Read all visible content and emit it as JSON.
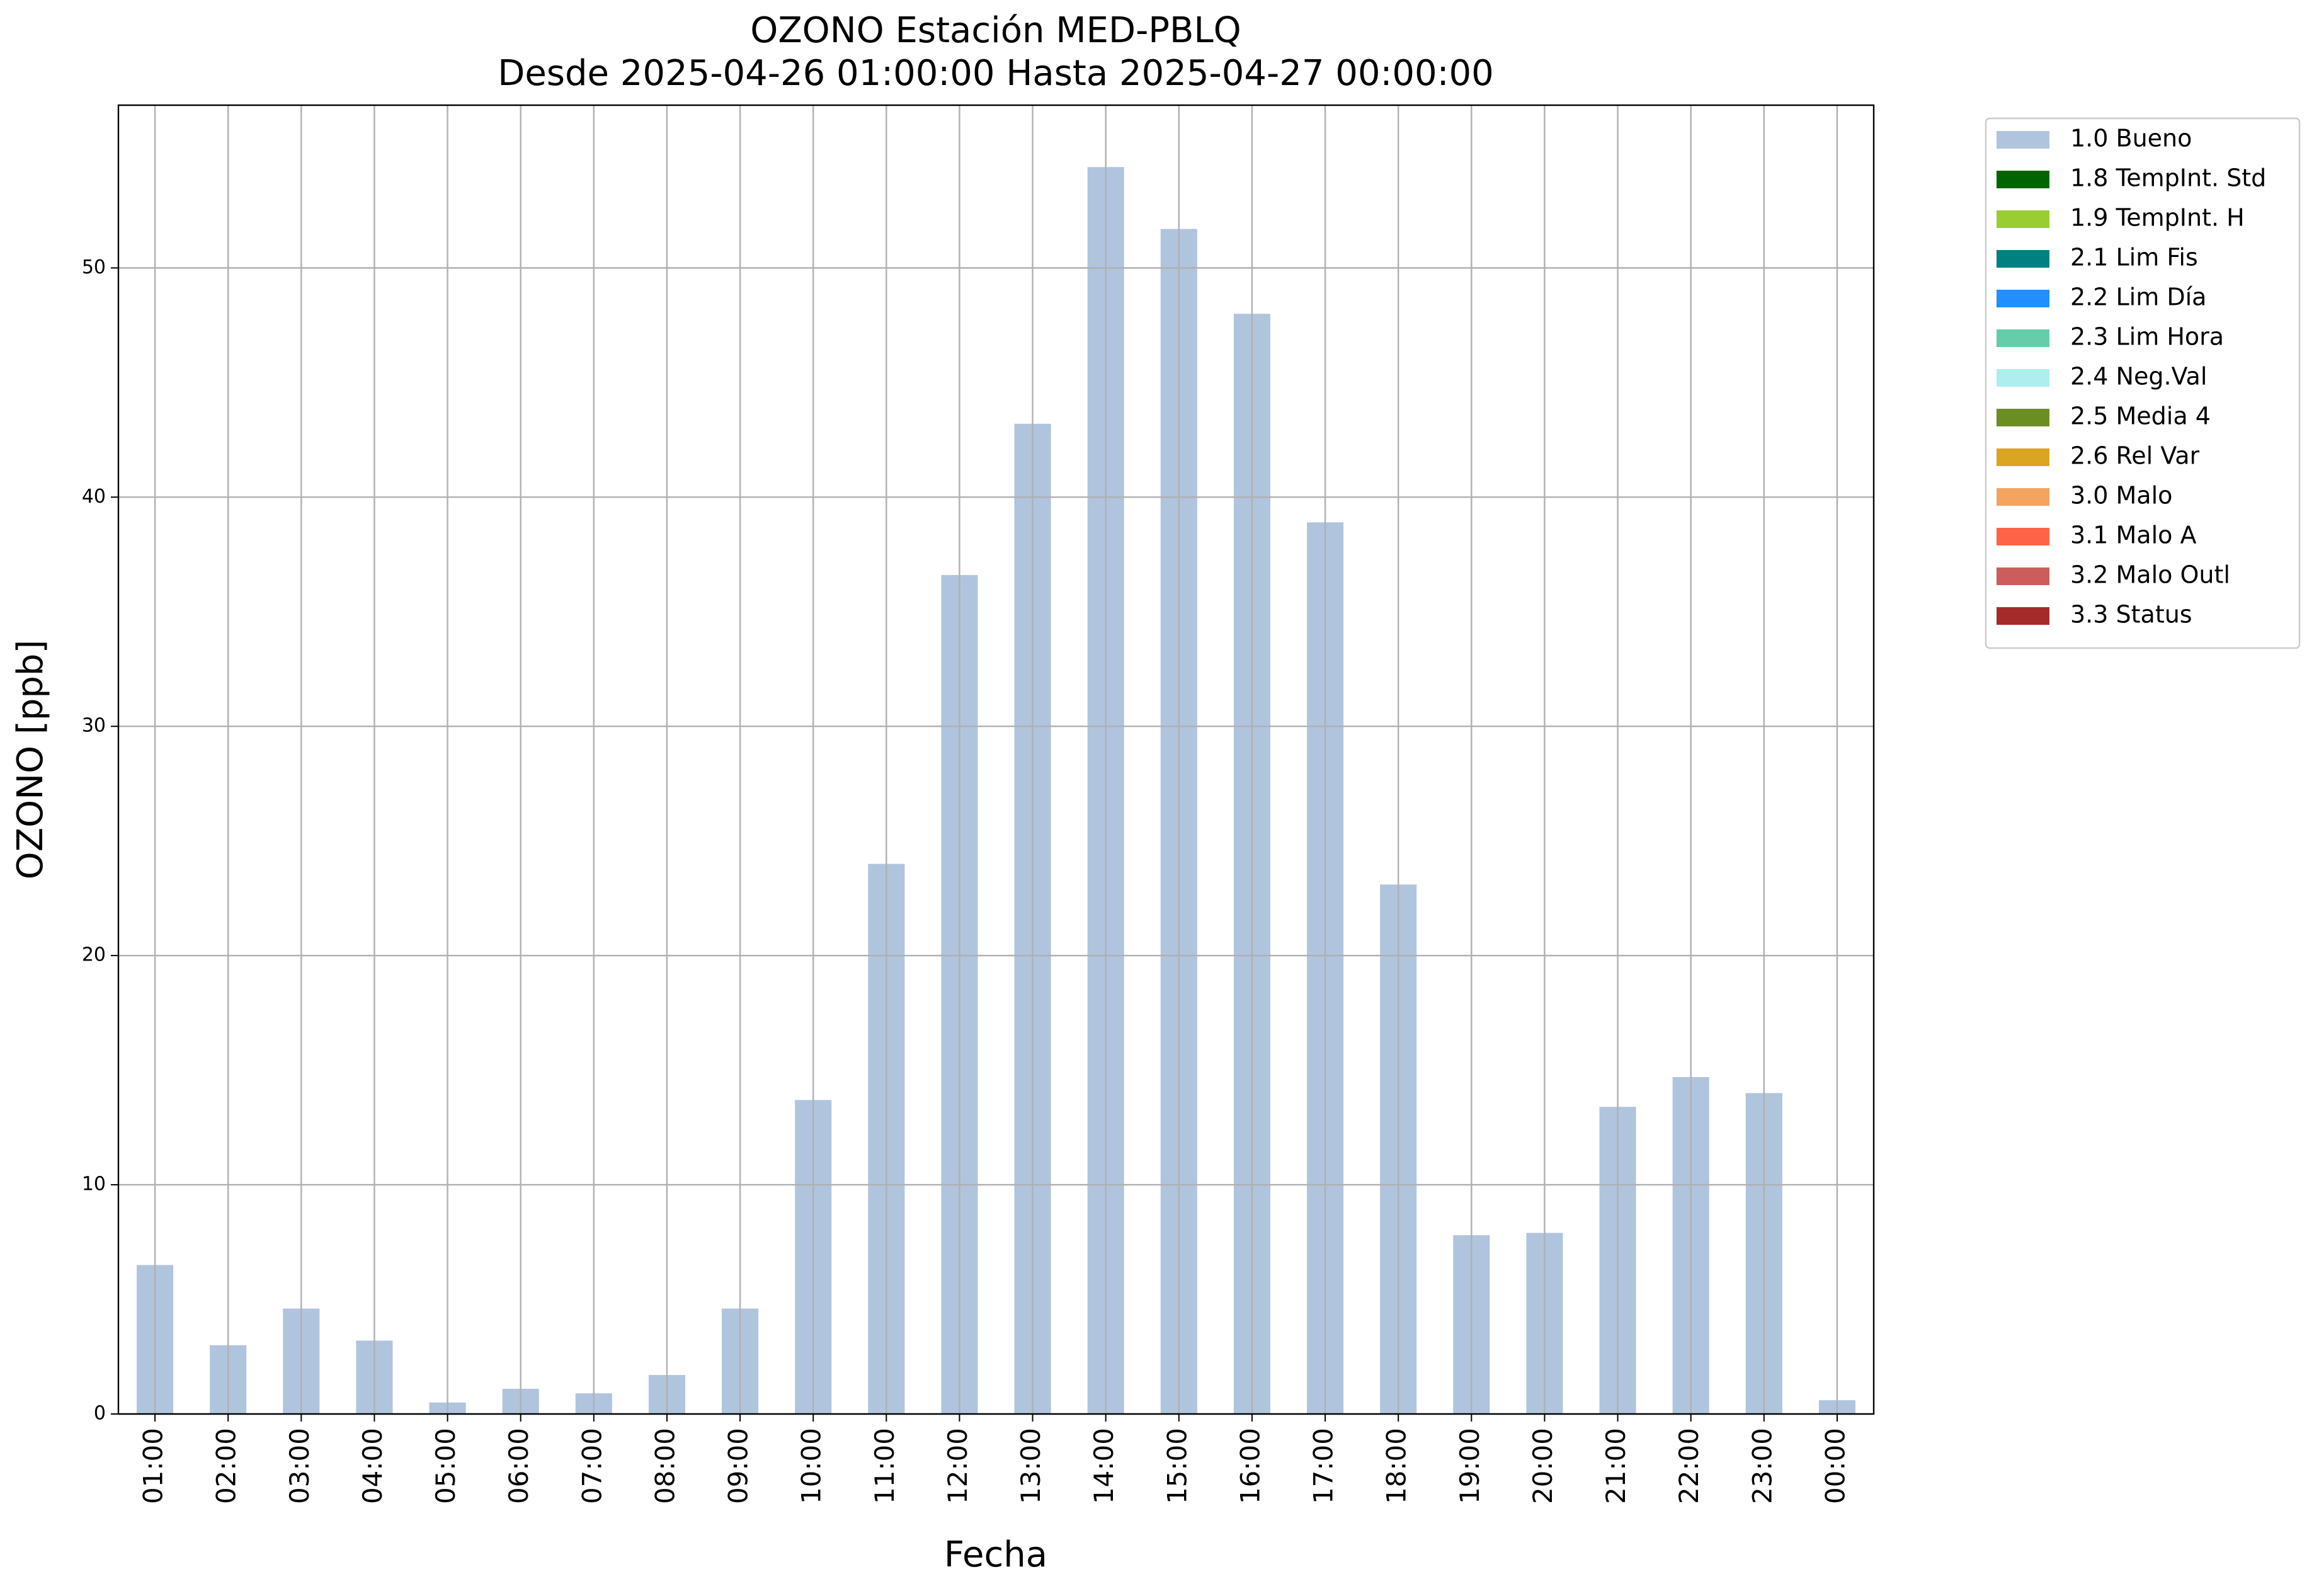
{
  "chart_data": {
    "type": "bar",
    "stacked": true,
    "title": "OZONO Estación MED-PBLQ",
    "subtitle": "Desde 2025-04-26 01:00:00 Hasta 2025-04-27 00:00:00",
    "x_label": "Fecha",
    "y_label": "OZONO [ppb]",
    "categories": [
      "01:00",
      "02:00",
      "03:00",
      "04:00",
      "05:00",
      "06:00",
      "07:00",
      "08:00",
      "09:00",
      "10:00",
      "11:00",
      "12:00",
      "13:00",
      "14:00",
      "15:00",
      "16:00",
      "17:00",
      "18:00",
      "19:00",
      "20:00",
      "21:00",
      "22:00",
      "23:00",
      "00:00"
    ],
    "series": [
      {
        "name": "1.0 Bueno",
        "color": "#b0c4de",
        "values": [
          6.5,
          3.0,
          4.6,
          3.2,
          0.5,
          1.1,
          0.9,
          1.7,
          4.6,
          13.7,
          24.0,
          36.6,
          43.2,
          54.4,
          51.7,
          48.0,
          38.9,
          23.1,
          7.8,
          7.9,
          13.4,
          14.7,
          14.0,
          0.6
        ]
      },
      {
        "name": "1.8 TempInt. Std",
        "color": "#006400",
        "values": [
          0,
          0,
          0,
          0,
          0,
          0,
          0,
          0,
          0,
          0,
          0,
          0,
          0,
          0,
          0,
          0,
          0,
          0,
          0,
          0,
          0,
          0,
          0,
          0
        ]
      },
      {
        "name": "1.9 TempInt. H",
        "color": "#9acd32",
        "values": [
          0,
          0,
          0,
          0,
          0,
          0,
          0,
          0,
          0,
          0,
          0,
          0,
          0,
          0,
          0,
          0,
          0,
          0,
          0,
          0,
          0,
          0,
          0,
          0
        ]
      },
      {
        "name": "2.1 Lim Fis",
        "color": "#008080",
        "values": [
          0,
          0,
          0,
          0,
          0,
          0,
          0,
          0,
          0,
          0,
          0,
          0,
          0,
          0,
          0,
          0,
          0,
          0,
          0,
          0,
          0,
          0,
          0,
          0
        ]
      },
      {
        "name": "2.2 Lim Día",
        "color": "#1e90ff",
        "values": [
          0,
          0,
          0,
          0,
          0,
          0,
          0,
          0,
          0,
          0,
          0,
          0,
          0,
          0,
          0,
          0,
          0,
          0,
          0,
          0,
          0,
          0,
          0,
          0
        ]
      },
      {
        "name": "2.3 Lim Hora",
        "color": "#66cdaa",
        "values": [
          0,
          0,
          0,
          0,
          0,
          0,
          0,
          0,
          0,
          0,
          0,
          0,
          0,
          0,
          0,
          0,
          0,
          0,
          0,
          0,
          0,
          0,
          0,
          0
        ]
      },
      {
        "name": "2.4 Neg.Val",
        "color": "#afeeee",
        "values": [
          0,
          0,
          0,
          0,
          0,
          0,
          0,
          0,
          0,
          0,
          0,
          0,
          0,
          0,
          0,
          0,
          0,
          0,
          0,
          0,
          0,
          0,
          0,
          0
        ]
      },
      {
        "name": "2.5 Media 4",
        "color": "#6b8e23",
        "values": [
          0,
          0,
          0,
          0,
          0,
          0,
          0,
          0,
          0,
          0,
          0,
          0,
          0,
          0,
          0,
          0,
          0,
          0,
          0,
          0,
          0,
          0,
          0,
          0
        ]
      },
      {
        "name": "2.6 Rel Var",
        "color": "#daa520",
        "values": [
          0,
          0,
          0,
          0,
          0,
          0,
          0,
          0,
          0,
          0,
          0,
          0,
          0,
          0,
          0,
          0,
          0,
          0,
          0,
          0,
          0,
          0,
          0,
          0
        ]
      },
      {
        "name": "3.0 Malo",
        "color": "#f4a460",
        "values": [
          0,
          0,
          0,
          0,
          0,
          0,
          0,
          0,
          0,
          0,
          0,
          0,
          0,
          0,
          0,
          0,
          0,
          0,
          0,
          0,
          0,
          0,
          0,
          0
        ]
      },
      {
        "name": "3.1 Malo A",
        "color": "#ff6347",
        "values": [
          0,
          0,
          0,
          0,
          0,
          0,
          0,
          0,
          0,
          0,
          0,
          0,
          0,
          0,
          0,
          0,
          0,
          0,
          0,
          0,
          0,
          0,
          0,
          0
        ]
      },
      {
        "name": "3.2 Malo Outl",
        "color": "#cd5c5c",
        "values": [
          0,
          0,
          0,
          0,
          0,
          0,
          0,
          0,
          0,
          0,
          0,
          0,
          0,
          0,
          0,
          0,
          0,
          0,
          0,
          0,
          0,
          0,
          0,
          0
        ]
      },
      {
        "name": "3.3 Status",
        "color": "#a52a2a",
        "values": [
          0,
          0,
          0,
          0,
          0,
          0,
          0,
          0,
          0,
          0,
          0,
          0,
          0,
          0,
          0,
          0,
          0,
          0,
          0,
          0,
          0,
          0,
          0,
          0
        ]
      }
    ],
    "ylim": [
      0,
      57.1
    ],
    "yticks": [
      0,
      10,
      20,
      30,
      40,
      50
    ],
    "grid": true,
    "legend": "outside-upper-right"
  }
}
